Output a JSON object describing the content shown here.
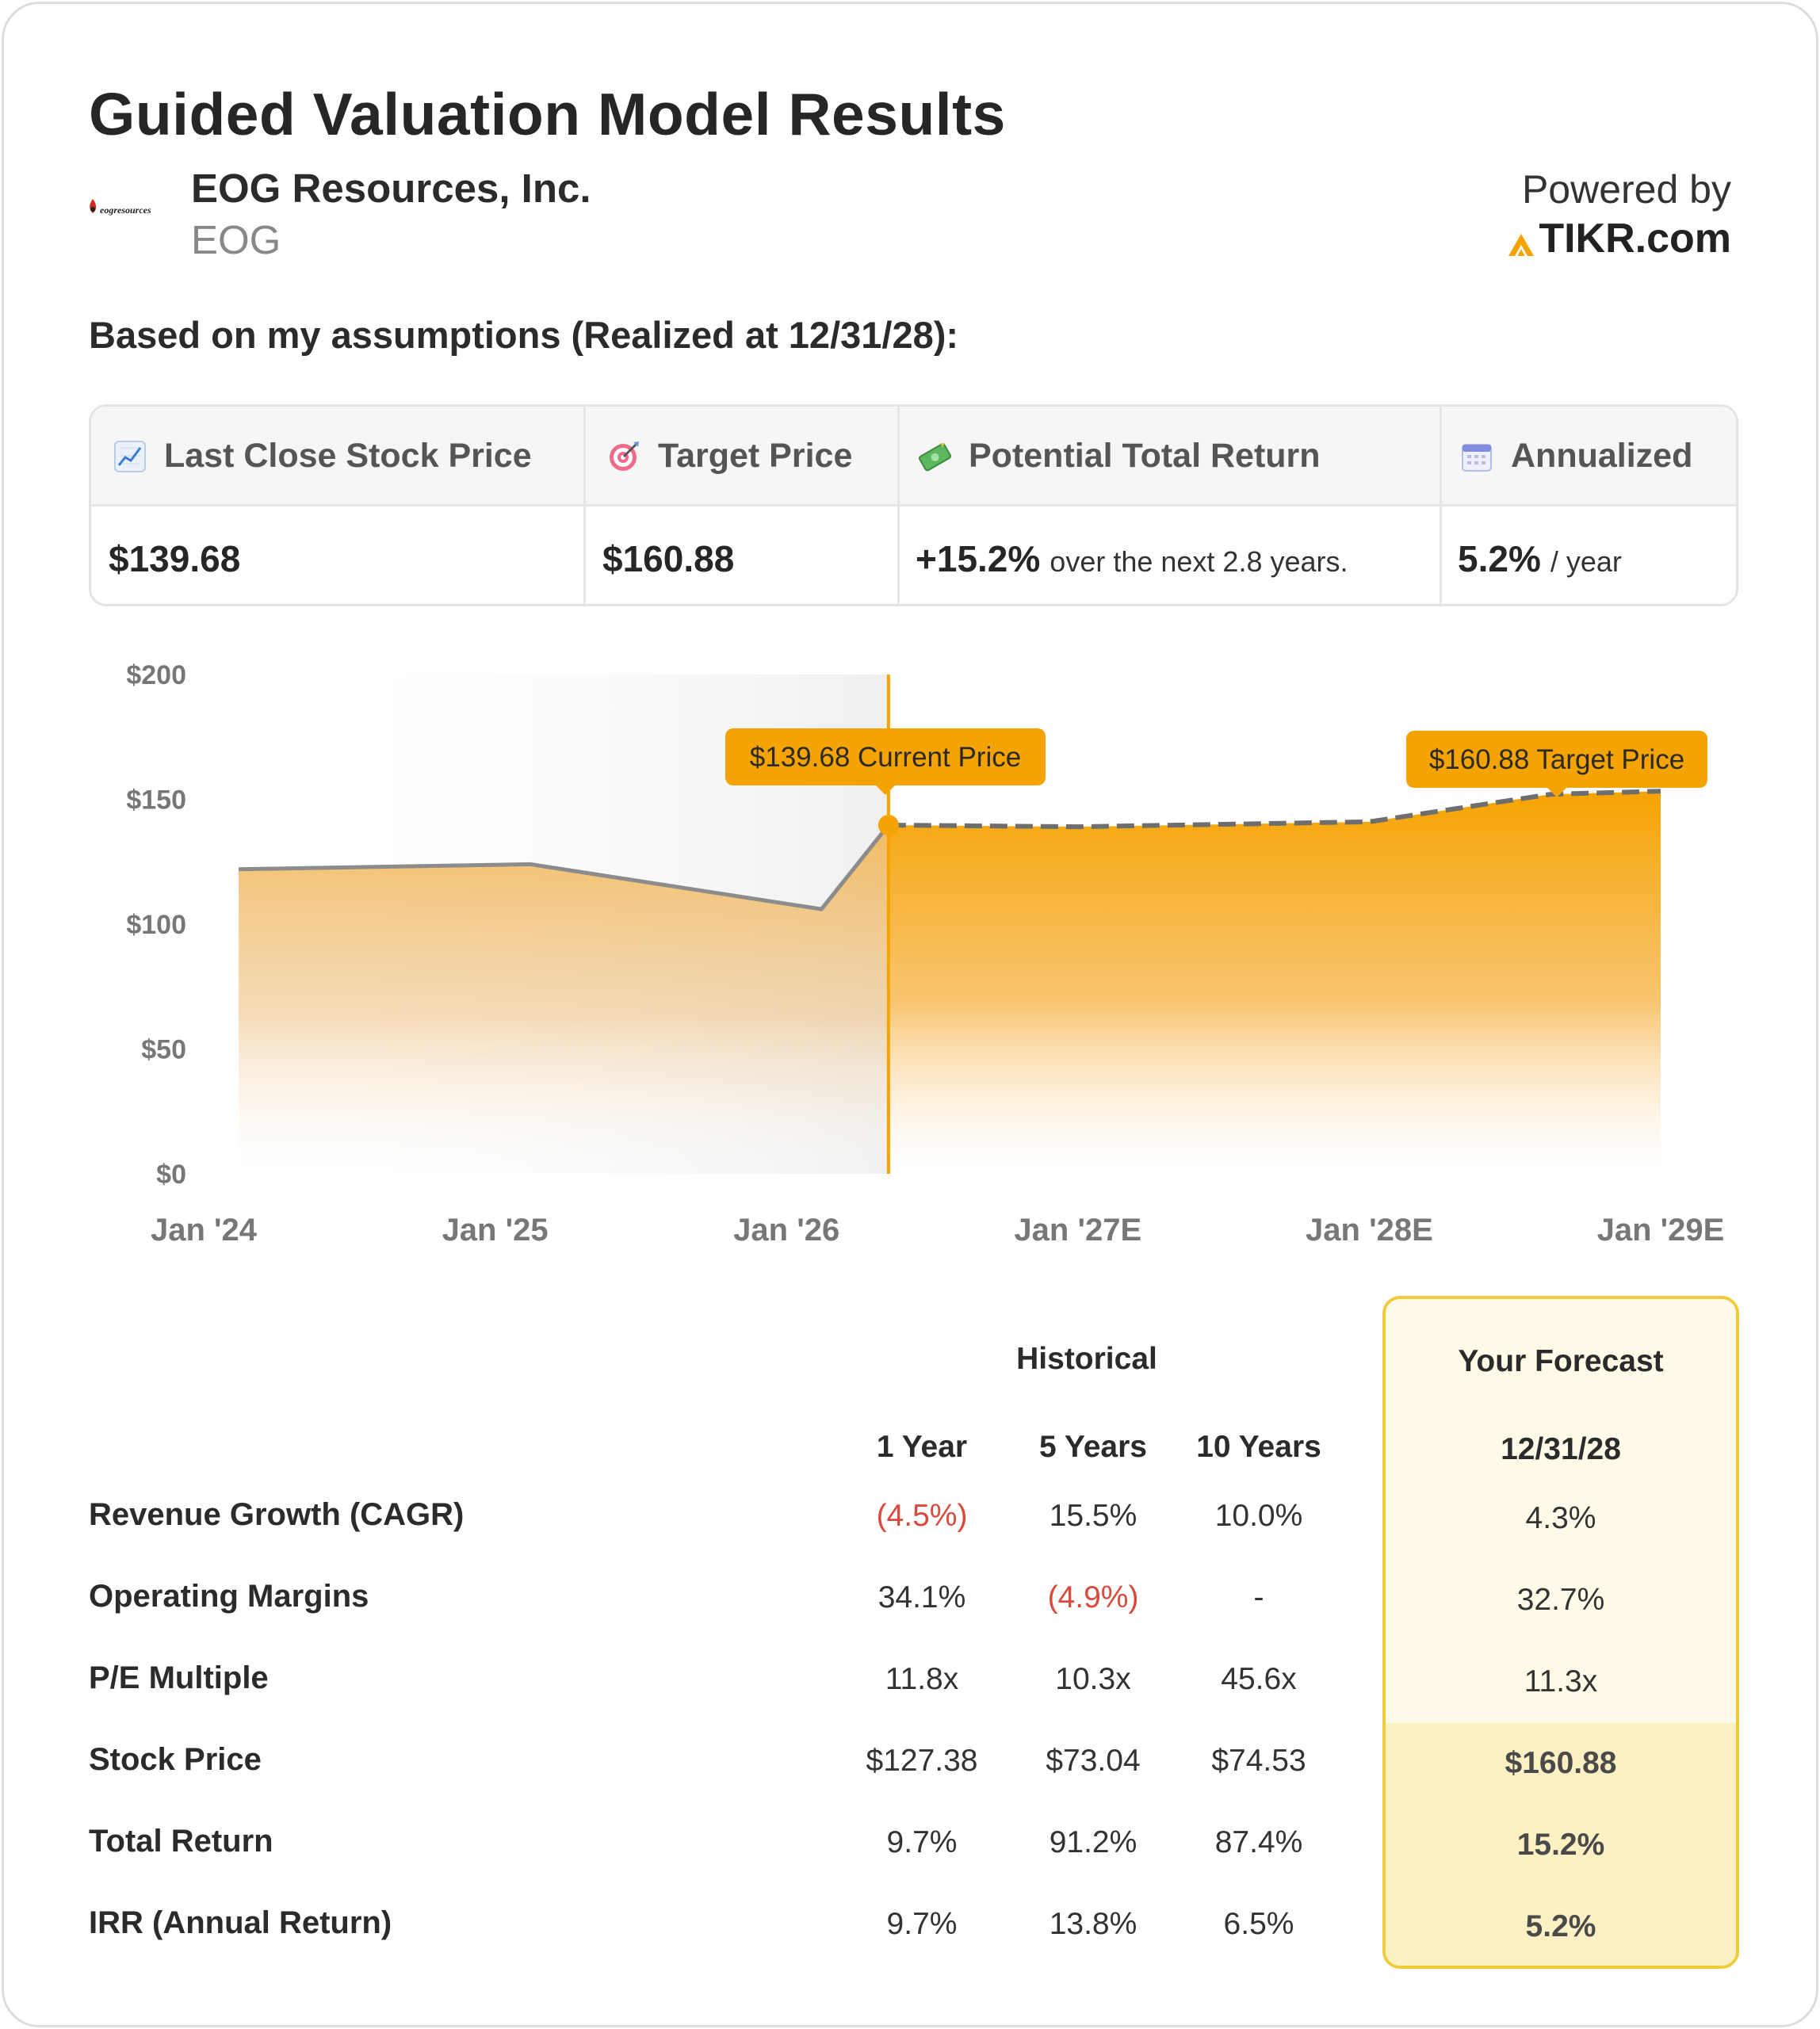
{
  "title": "Guided Valuation Model Results",
  "company": {
    "name": "EOG Resources, Inc.",
    "ticker": "EOG",
    "logo_text": "eogresources"
  },
  "powered_by": {
    "label": "Powered by",
    "brand": "TIKR.com"
  },
  "assumptions_heading": "Based on my assumptions (Realized at 12/31/28):",
  "metrics": [
    {
      "icon": "chart-up-icon",
      "label": "Last Close Stock Price",
      "value": "$139.68",
      "suffix": ""
    },
    {
      "icon": "target-icon",
      "label": "Target Price",
      "value": "$160.88",
      "suffix": ""
    },
    {
      "icon": "money-icon",
      "label": "Potential Total Return",
      "value": "+15.2%",
      "suffix": "over the next 2.8 years."
    },
    {
      "icon": "calendar-icon",
      "label": "Annualized",
      "value": "5.2%",
      "suffix": "/ year"
    }
  ],
  "colors": {
    "accent": "#f5a300",
    "accent_light": "#f7b84a",
    "negative": "#d94a3d",
    "forecast_border": "#f0cc3a"
  },
  "chart_data": {
    "type": "area",
    "x_tick_labels": [
      "Jan '24",
      "Jan '25",
      "Jan '26",
      "Jan '27E",
      "Jan '28E",
      "Jan '29E"
    ],
    "y_tick_labels": [
      "$0",
      "$50",
      "$100",
      "$150",
      "$200"
    ],
    "ylim": [
      0,
      200
    ],
    "xlim": [
      2024.0,
      2029.0
    ],
    "historical": [
      {
        "x": 2024.12,
        "y": 122
      },
      {
        "x": 2025.12,
        "y": 124
      },
      {
        "x": 2026.12,
        "y": 106
      },
      {
        "x": 2026.35,
        "y": 139.68
      }
    ],
    "forecast": [
      {
        "x": 2026.35,
        "y": 139.68
      },
      {
        "x": 2027.0,
        "y": 139
      },
      {
        "x": 2028.0,
        "y": 141
      },
      {
        "x": 2028.62,
        "y": 152
      }
    ],
    "current_x": 2026.35,
    "current_label": "$139.68 Current Price",
    "target_label": "$160.88 Target Price"
  },
  "table": {
    "group_historical": "Historical",
    "group_forecast": "Your Forecast",
    "columns": [
      "1 Year",
      "5 Years",
      "10 Years"
    ],
    "forecast_column": "12/31/28",
    "rows": [
      {
        "label": "Revenue Growth (CAGR)",
        "values": [
          "(4.5%)",
          "15.5%",
          "10.0%"
        ],
        "negative": [
          true,
          false,
          false
        ],
        "forecast": "4.3%",
        "emphasis": false
      },
      {
        "label": "Operating Margins",
        "values": [
          "34.1%",
          "(4.9%)",
          "-"
        ],
        "negative": [
          false,
          true,
          false
        ],
        "forecast": "32.7%",
        "emphasis": false
      },
      {
        "label": "P/E Multiple",
        "values": [
          "11.8x",
          "10.3x",
          "45.6x"
        ],
        "negative": [
          false,
          false,
          false
        ],
        "forecast": "11.3x",
        "emphasis": false
      },
      {
        "label": "Stock Price",
        "values": [
          "$127.38",
          "$73.04",
          "$74.53"
        ],
        "negative": [
          false,
          false,
          false
        ],
        "forecast": "$160.88",
        "emphasis": true
      },
      {
        "label": "Total Return",
        "values": [
          "9.7%",
          "91.2%",
          "87.4%"
        ],
        "negative": [
          false,
          false,
          false
        ],
        "forecast": "15.2%",
        "emphasis": true
      },
      {
        "label": "IRR (Annual Return)",
        "values": [
          "9.7%",
          "13.8%",
          "6.5%"
        ],
        "negative": [
          false,
          false,
          false
        ],
        "forecast": "5.2%",
        "emphasis": true
      }
    ]
  }
}
